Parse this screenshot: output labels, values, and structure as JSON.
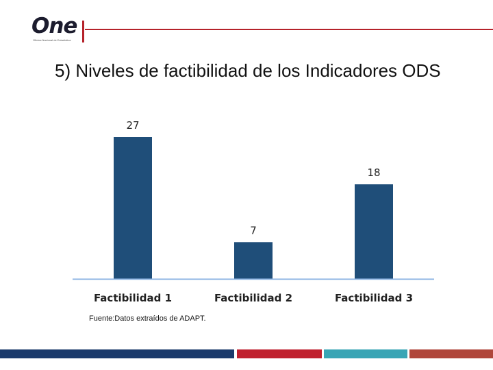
{
  "header": {
    "logo_text": "One",
    "logo_subtext": "Oficina Nacional de Estadística"
  },
  "slide": {
    "title": "5) Niveles de factibilidad de los Indicadores ODS",
    "source_note": "Fuente:Datos extraídos de ADAPT."
  },
  "chart_data": {
    "type": "bar",
    "categories": [
      "Factibilidad 1",
      "Factibilidad 2",
      "Factibilidad 3"
    ],
    "values": [
      27,
      7,
      18
    ],
    "data_labels": [
      "27",
      "7",
      "18"
    ],
    "title": "",
    "xlabel": "",
    "ylabel": "",
    "ylim": [
      0,
      30
    ],
    "grid": false,
    "legend": "none",
    "bar_color": "#1f4e79",
    "axis_color": "#8eb4e3"
  },
  "colors": {
    "accent_red": "#b5222a",
    "footer": [
      "#1b3a6b",
      "#c0202e",
      "#39a5b5",
      "#b0463a"
    ]
  }
}
